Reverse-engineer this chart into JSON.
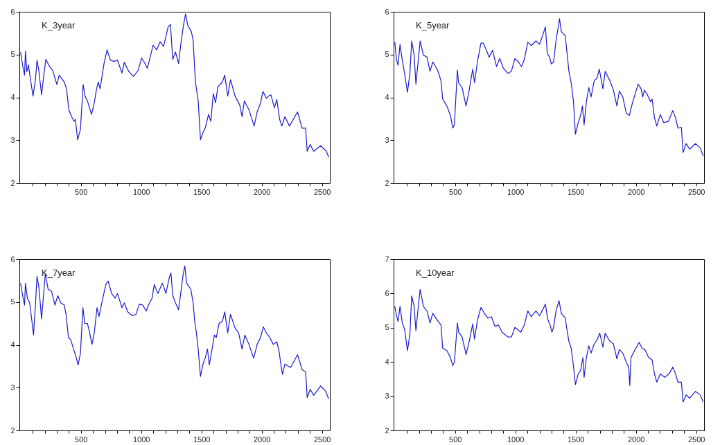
{
  "chart_data": [
    {
      "type": "line",
      "title": "K_3year",
      "xlim": [
        -10,
        2565
      ],
      "ylim": [
        2,
        6
      ],
      "yticks": [
        2,
        3,
        4,
        5,
        6
      ],
      "xticks": [
        {
          "value": 100,
          "label": null
        },
        {
          "value": 200,
          "label": null
        },
        {
          "value": 300,
          "label": null
        },
        {
          "value": 400,
          "label": null
        },
        500,
        {
          "value": 600,
          "label": null
        },
        {
          "value": 700,
          "label": null
        },
        {
          "value": 800,
          "label": null
        },
        {
          "value": 900,
          "label": null
        },
        1000,
        {
          "value": 1100,
          "label": null
        },
        {
          "value": 1200,
          "label": null
        },
        {
          "value": 1300,
          "label": null
        },
        {
          "value": 1400,
          "label": null
        },
        1500,
        {
          "value": 1600,
          "label": null
        },
        {
          "value": 1700,
          "label": null
        },
        {
          "value": 1800,
          "label": null
        },
        {
          "value": 1900,
          "label": null
        },
        2000,
        {
          "value": 2100,
          "label": null
        },
        {
          "value": 2200,
          "label": null
        },
        {
          "value": 2300,
          "label": null
        },
        {
          "value": 2400,
          "label": null
        },
        2500
      ],
      "x": [
        0,
        8,
        20,
        33,
        40,
        52,
        65,
        75,
        103,
        123,
        136,
        151,
        174,
        190,
        209,
        238,
        266,
        301,
        320,
        362,
        381,
        400,
        423,
        443,
        454,
        473,
        496,
        519,
        534,
        554,
        588,
        611,
        630,
        644,
        659,
        692,
        717,
        745,
        774,
        803,
        841,
        860,
        898,
        937,
        975,
        1004,
        1032,
        1051,
        1070,
        1099,
        1128,
        1157,
        1186,
        1224,
        1243,
        1262,
        1285,
        1310,
        1330,
        1349,
        1368,
        1387,
        1416,
        1431,
        1450,
        1473,
        1492,
        1511,
        1531,
        1559,
        1578,
        1598,
        1617,
        1636,
        1674,
        1693,
        1718,
        1741,
        1779,
        1818,
        1837,
        1856,
        1894,
        1937,
        1962,
        1990,
        2010,
        2038,
        2057,
        2076,
        2105,
        2125,
        2148,
        2167,
        2192,
        2230,
        2297,
        2335,
        2364,
        2377,
        2402,
        2431,
        2488,
        2536,
        2556
      ],
      "series": [
        {
          "color": "#1a1acc",
          "values": [
            5.06,
            4.9,
            4.7,
            4.52,
            5.08,
            4.6,
            4.76,
            4.55,
            4.03,
            4.41,
            4.87,
            4.63,
            4.06,
            4.46,
            4.89,
            4.73,
            4.63,
            4.3,
            4.52,
            4.36,
            4.2,
            3.71,
            3.55,
            3.44,
            3.49,
            3.01,
            3.25,
            4.3,
            4.03,
            3.92,
            3.6,
            3.87,
            4.2,
            4.36,
            4.2,
            4.79,
            5.11,
            4.87,
            4.84,
            4.87,
            4.57,
            4.82,
            4.6,
            4.49,
            4.63,
            4.92,
            4.79,
            4.68,
            4.89,
            5.22,
            5.11,
            5.3,
            5.19,
            5.65,
            5.7,
            4.89,
            5.06,
            4.79,
            5.27,
            5.65,
            5.95,
            5.68,
            5.54,
            5.33,
            4.36,
            3.92,
            3.01,
            3.17,
            3.28,
            3.6,
            3.44,
            4.09,
            3.87,
            4.25,
            4.36,
            4.52,
            4.03,
            4.41,
            4.03,
            3.82,
            3.55,
            3.92,
            3.71,
            3.33,
            3.66,
            3.87,
            4.14,
            3.98,
            4.03,
            4.06,
            3.76,
            3.95,
            3.49,
            3.33,
            3.55,
            3.33,
            3.66,
            3.28,
            3.28,
            2.74,
            2.9,
            2.74,
            2.87,
            2.74,
            2.6
          ]
        }
      ]
    },
    {
      "type": "line",
      "title": "K_5year",
      "xlim": [
        -10,
        2565
      ],
      "ylim": [
        2,
        6
      ],
      "yticks": [
        2,
        3,
        4,
        5,
        6
      ],
      "xticks": [
        {
          "value": 100,
          "label": null
        },
        {
          "value": 200,
          "label": null
        },
        {
          "value": 300,
          "label": null
        },
        {
          "value": 400,
          "label": null
        },
        500,
        {
          "value": 600,
          "label": null
        },
        {
          "value": 700,
          "label": null
        },
        {
          "value": 800,
          "label": null
        },
        {
          "value": 900,
          "label": null
        },
        1000,
        {
          "value": 1100,
          "label": null
        },
        {
          "value": 1200,
          "label": null
        },
        {
          "value": 1300,
          "label": null
        },
        {
          "value": 1400,
          "label": null
        },
        1500,
        {
          "value": 1600,
          "label": null
        },
        {
          "value": 1700,
          "label": null
        },
        {
          "value": 1800,
          "label": null
        },
        {
          "value": 1900,
          "label": null
        },
        2000,
        {
          "value": 2100,
          "label": null
        },
        {
          "value": 2200,
          "label": null
        },
        {
          "value": 2300,
          "label": null
        },
        {
          "value": 2400,
          "label": null
        },
        2500
      ],
      "x": [
        0,
        14,
        27,
        43,
        58,
        78,
        105,
        125,
        140,
        160,
        175,
        195,
        210,
        237,
        267,
        292,
        315,
        354,
        383,
        397,
        432,
        461,
        481,
        494,
        519,
        529,
        558,
        591,
        617,
        646,
        661,
        685,
        714,
        733,
        763,
        782,
        811,
        844,
        870,
        899,
        938,
        967,
        996,
        1025,
        1051,
        1074,
        1103,
        1132,
        1171,
        1200,
        1230,
        1249,
        1265,
        1284,
        1298,
        1317,
        1337,
        1356,
        1366,
        1381,
        1414,
        1428,
        1444,
        1463,
        1482,
        1498,
        1521,
        1541,
        1556,
        1570,
        1589,
        1609,
        1628,
        1654,
        1677,
        1696,
        1726,
        1745,
        1784,
        1813,
        1842,
        1862,
        1891,
        1920,
        1946,
        1969,
        1998,
        2018,
        2043,
        2056,
        2070,
        2095,
        2121,
        2134,
        2154,
        2173,
        2202,
        2231,
        2270,
        2305,
        2329,
        2348,
        2377,
        2391,
        2416,
        2445,
        2494,
        2533,
        2558
      ],
      "series": [
        {
          "color": "#1a1acc",
          "values": [
            5.29,
            4.88,
            4.75,
            5.24,
            4.94,
            4.61,
            4.12,
            4.56,
            5.32,
            4.99,
            4.31,
            4.88,
            5.32,
            4.99,
            4.94,
            4.61,
            4.83,
            4.64,
            4.39,
            3.96,
            3.8,
            3.58,
            3.28,
            3.36,
            4.64,
            4.34,
            4.23,
            3.8,
            4.17,
            4.66,
            4.34,
            4.83,
            5.27,
            5.27,
            5.08,
            4.94,
            5.1,
            4.72,
            4.91,
            4.69,
            4.56,
            4.61,
            4.91,
            4.83,
            4.72,
            4.88,
            5.29,
            5.21,
            5.32,
            5.24,
            5.48,
            5.65,
            5.02,
            4.94,
            4.78,
            4.83,
            5.32,
            5.65,
            5.84,
            5.54,
            5.43,
            5.05,
            4.61,
            4.34,
            3.9,
            3.14,
            3.41,
            3.58,
            3.8,
            3.36,
            3.9,
            4.23,
            4.01,
            4.39,
            4.45,
            4.66,
            4.2,
            4.61,
            4.39,
            4.17,
            3.8,
            4.15,
            4.01,
            3.63,
            3.58,
            3.85,
            4.12,
            4.31,
            4.2,
            4.01,
            4.17,
            4.06,
            3.9,
            3.96,
            3.52,
            3.33,
            3.6,
            3.41,
            3.44,
            3.69,
            3.52,
            3.28,
            3.3,
            2.71,
            2.92,
            2.79,
            2.92,
            2.82,
            2.63
          ]
        }
      ]
    },
    {
      "type": "line",
      "title": "K_7year",
      "xlim": [
        -10,
        2565
      ],
      "ylim": [
        2,
        6
      ],
      "yticks": [
        2,
        3,
        4,
        5,
        6
      ],
      "xticks": [
        {
          "value": 100,
          "label": null
        },
        {
          "value": 200,
          "label": null
        },
        {
          "value": 300,
          "label": null
        },
        {
          "value": 400,
          "label": null
        },
        500,
        {
          "value": 600,
          "label": null
        },
        {
          "value": 700,
          "label": null
        },
        {
          "value": 800,
          "label": null
        },
        {
          "value": 900,
          "label": null
        },
        1000,
        {
          "value": 1100,
          "label": null
        },
        {
          "value": 1200,
          "label": null
        },
        {
          "value": 1300,
          "label": null
        },
        {
          "value": 1400,
          "label": null
        },
        1500,
        {
          "value": 1600,
          "label": null
        },
        {
          "value": 1700,
          "label": null
        },
        {
          "value": 1800,
          "label": null
        },
        {
          "value": 1900,
          "label": null
        },
        2000,
        {
          "value": 2100,
          "label": null
        },
        {
          "value": 2200,
          "label": null
        },
        {
          "value": 2300,
          "label": null
        },
        {
          "value": 2400,
          "label": null
        },
        2500
      ],
      "x": [
        0,
        8,
        21,
        33,
        40,
        56,
        75,
        94,
        107,
        123,
        136,
        151,
        174,
        190,
        205,
        228,
        257,
        285,
        308,
        333,
        362,
        377,
        397,
        416,
        439,
        458,
        477,
        496,
        517,
        532,
        554,
        573,
        592,
        611,
        634,
        650,
        678,
        707,
        726,
        755,
        784,
        803,
        841,
        860,
        889,
        927,
        956,
        985,
        1013,
        1042,
        1061,
        1090,
        1109,
        1138,
        1176,
        1205,
        1234,
        1247,
        1262,
        1285,
        1310,
        1330,
        1349,
        1362,
        1377,
        1412,
        1431,
        1444,
        1458,
        1473,
        1492,
        1511,
        1531,
        1550,
        1565,
        1588,
        1607,
        1623,
        1646,
        1674,
        1693,
        1718,
        1741,
        1779,
        1808,
        1837,
        1860,
        1894,
        1933,
        1962,
        1990,
        2013,
        2038,
        2067,
        2096,
        2125,
        2144,
        2159,
        2172,
        2192,
        2239,
        2297,
        2335,
        2364,
        2377,
        2402,
        2431,
        2488,
        2527,
        2555
      ],
      "series": [
        {
          "color": "#1a1acc",
          "values": [
            5.44,
            5.3,
            5.09,
            4.93,
            5.44,
            5.09,
            4.98,
            4.55,
            4.23,
            4.93,
            5.6,
            5.36,
            4.61,
            5.15,
            5.66,
            5.3,
            5.25,
            4.93,
            5.15,
            4.98,
            4.93,
            4.71,
            4.17,
            4.12,
            3.9,
            3.74,
            3.53,
            3.8,
            4.87,
            4.5,
            4.5,
            4.28,
            4.01,
            4.28,
            4.87,
            4.66,
            5.04,
            5.41,
            5.49,
            5.2,
            5.09,
            5.2,
            4.87,
            4.98,
            4.77,
            4.68,
            4.71,
            4.95,
            4.93,
            4.79,
            4.93,
            5.09,
            5.41,
            5.2,
            5.44,
            5.2,
            5.58,
            5.68,
            5.15,
            4.98,
            4.82,
            5.25,
            5.66,
            5.84,
            5.44,
            5.3,
            4.98,
            4.55,
            4.28,
            3.9,
            3.26,
            3.53,
            3.69,
            3.9,
            3.53,
            3.9,
            4.23,
            4.17,
            4.5,
            4.55,
            4.77,
            4.28,
            4.71,
            4.39,
            4.28,
            3.9,
            4.23,
            4.01,
            3.69,
            4.01,
            4.17,
            4.42,
            4.28,
            4.17,
            4.01,
            4.07,
            3.85,
            3.53,
            3.31,
            3.55,
            3.47,
            3.77,
            3.42,
            3.37,
            2.77,
            2.96,
            2.82,
            3.04,
            2.93,
            2.74
          ]
        }
      ]
    },
    {
      "type": "line",
      "title": "K_10year",
      "xlim": [
        -10,
        2565
      ],
      "ylim": [
        2,
        7
      ],
      "yticks": [
        2,
        3,
        4,
        5,
        6,
        7
      ],
      "xticks": [
        {
          "value": 100,
          "label": null
        },
        {
          "value": 200,
          "label": null
        },
        {
          "value": 300,
          "label": null
        },
        {
          "value": 400,
          "label": null
        },
        500,
        {
          "value": 600,
          "label": null
        },
        {
          "value": 700,
          "label": null
        },
        {
          "value": 800,
          "label": null
        },
        {
          "value": 900,
          "label": null
        },
        1000,
        {
          "value": 1100,
          "label": null
        },
        {
          "value": 1200,
          "label": null
        },
        {
          "value": 1300,
          "label": null
        },
        {
          "value": 1400,
          "label": null
        },
        1500,
        {
          "value": 1600,
          "label": null
        },
        {
          "value": 1700,
          "label": null
        },
        {
          "value": 1800,
          "label": null
        },
        {
          "value": 1900,
          "label": null
        },
        2000,
        {
          "value": 2100,
          "label": null
        },
        {
          "value": 2200,
          "label": null
        },
        {
          "value": 2300,
          "label": null
        },
        {
          "value": 2400,
          "label": null
        },
        2500
      ],
      "x": [
        0,
        14,
        27,
        43,
        62,
        82,
        105,
        125,
        140,
        160,
        175,
        195,
        210,
        237,
        267,
        292,
        315,
        354,
        383,
        397,
        432,
        461,
        481,
        494,
        519,
        529,
        558,
        591,
        617,
        646,
        661,
        685,
        714,
        743,
        772,
        802,
        831,
        860,
        889,
        938,
        967,
        996,
        1045,
        1074,
        1103,
        1132,
        1171,
        1200,
        1230,
        1249,
        1268,
        1288,
        1303,
        1317,
        1337,
        1362,
        1381,
        1414,
        1428,
        1444,
        1463,
        1479,
        1498,
        1521,
        1541,
        1560,
        1570,
        1589,
        1609,
        1628,
        1654,
        1677,
        1700,
        1726,
        1745,
        1784,
        1813,
        1842,
        1862,
        1891,
        1920,
        1940,
        1949,
        1959,
        1988,
        2027,
        2051,
        2075,
        2105,
        2134,
        2154,
        2173,
        2202,
        2241,
        2280,
        2305,
        2329,
        2348,
        2377,
        2391,
        2416,
        2445,
        2494,
        2533,
        2558
      ],
      "series": [
        {
          "color": "#1a1acc",
          "values": [
            5.62,
            5.35,
            5.18,
            5.62,
            5.14,
            4.94,
            4.33,
            4.81,
            5.93,
            5.62,
            4.91,
            5.62,
            6.12,
            5.62,
            5.49,
            5.14,
            5.42,
            5.21,
            5.08,
            4.4,
            4.33,
            4.13,
            3.89,
            4.0,
            5.14,
            4.87,
            4.73,
            4.22,
            4.6,
            5.11,
            4.67,
            5.21,
            5.59,
            5.42,
            5.28,
            5.32,
            5.04,
            5.08,
            4.87,
            4.73,
            4.73,
            5.01,
            4.87,
            5.08,
            5.49,
            5.32,
            5.49,
            5.35,
            5.55,
            5.69,
            5.25,
            5.08,
            4.87,
            5.01,
            5.49,
            5.79,
            5.42,
            5.28,
            4.94,
            4.6,
            4.4,
            3.96,
            3.34,
            3.65,
            3.75,
            4.13,
            3.55,
            4.13,
            4.47,
            4.26,
            4.53,
            4.64,
            4.84,
            4.43,
            4.84,
            4.6,
            4.53,
            4.09,
            4.36,
            4.26,
            3.99,
            3.85,
            3.31,
            4.13,
            4.33,
            4.57,
            4.4,
            4.36,
            4.13,
            4.06,
            3.65,
            3.41,
            3.65,
            3.55,
            3.68,
            3.85,
            3.65,
            3.41,
            3.41,
            2.83,
            3.04,
            2.94,
            3.14,
            3.04,
            2.83
          ]
        }
      ]
    }
  ]
}
